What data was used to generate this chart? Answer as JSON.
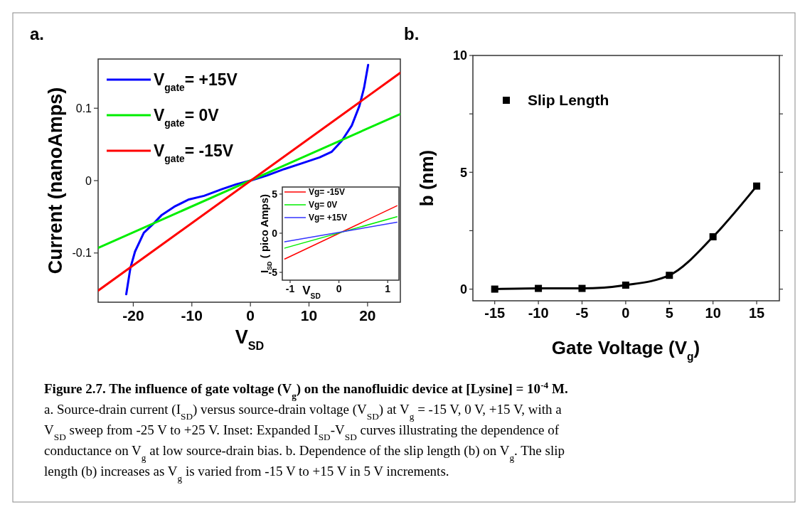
{
  "chart_data": [
    {
      "type": "line",
      "title": "a.",
      "xlabel": "V$_{SD}$",
      "ylabel": "Current (nanoAmps)",
      "xlim": [
        -26,
        25.6
      ],
      "xticks": [
        -20,
        -10,
        0,
        10,
        20
      ],
      "ylim": [
        -0.168,
        0.168
      ],
      "yticks": [
        -0.1,
        0,
        0.1
      ],
      "legend": "top left",
      "series": [
        {
          "name": "V$_{gate}$= +15V",
          "color": "#0000ff",
          "x": [
            -21.2,
            -20.5,
            -19.7,
            -18.2,
            -16.5,
            -15.2,
            -13,
            -10.5,
            -7.9,
            -4.9,
            -2.4,
            0,
            2.8,
            5.8,
            8.8,
            11.8,
            13.9,
            15.6,
            17.3,
            18.6,
            19.4,
            20.1
          ],
          "values": [
            -0.157,
            -0.121,
            -0.098,
            -0.072,
            -0.059,
            -0.048,
            -0.036,
            -0.026,
            -0.021,
            -0.012,
            -0.005,
            0,
            0.007,
            0.016,
            0.024,
            0.032,
            0.04,
            0.055,
            0.076,
            0.103,
            0.128,
            0.16
          ]
        },
        {
          "name": "V$_{gate}$= 0V",
          "color": "#00ee00",
          "x": [
            -26,
            25.6
          ],
          "values": [
            -0.093,
            0.092
          ]
        },
        {
          "name": "V$_{gate}$= -15V",
          "color": "#ff0000",
          "x": [
            -26,
            25.6
          ],
          "values": [
            -0.152,
            0.149
          ]
        }
      ],
      "annotations": [
        "Figure 2.7. The influence of gate voltage (V$_{g}$) on the nanofluidic device at  [Lysine] = 10$^{-4}$ M.",
        "a. Source-drain current (I$_{SD}$) versus source-drain voltage (V$_{SD}$) at V$_{g}$ = -15 V, 0 V, +15 V, with a",
        "V$_{SD}$ sweep from -25 V to +25 V. Inset: Expanded I$_{SD}$-V$_{SD}$  curves illustrating the dependence of",
        "conductance on V$_{g}$ at low source-drain bias. b. Dependence of the slip length (b) on V$_{g}$. The slip",
        "length (b) increases as V$_{g}$ is varied from -15 V to +15 V in 5 V increments."
      ]
    },
    {
      "type": "line",
      "xlabel": "V$_{SD}$",
      "ylabel": "I$_{SD}$ ( pico Amps)",
      "xlim": [
        -1.16,
        1.23
      ],
      "xticks": [
        -1,
        0,
        1
      ],
      "ylim": [
        -6,
        5.9
      ],
      "yticks": [
        -5,
        0,
        5
      ],
      "legend": "top left",
      "series": [
        {
          "name": "Vg= -15V",
          "color": "#ff0000",
          "x": [
            -1.11,
            1.19
          ],
          "values": [
            -3.3,
            3.5
          ]
        },
        {
          "name": "Vg= 0V",
          "color": "#00ee00",
          "x": [
            -1.11,
            1.19
          ],
          "values": [
            -1.9,
            2.1
          ]
        },
        {
          "name": "Vg= +15V",
          "color": "#3333ff",
          "x": [
            -1.11,
            1.19
          ],
          "values": [
            -1.1,
            1.4
          ]
        }
      ]
    },
    {
      "type": "line",
      "title": "b.",
      "xlabel": "Gate Voltage (V$_{g}$)",
      "ylabel": "b (nm)",
      "xlim": [
        -17.5,
        17.6
      ],
      "xticks": [
        -15,
        -10,
        -5,
        0,
        5,
        10,
        15
      ],
      "ylim": [
        -0.5,
        10
      ],
      "yticks": [
        0,
        {
          "value": 2.5,
          "label": null
        },
        5,
        {
          "value": 7.5,
          "label": null
        },
        10
      ],
      "legend": "top left",
      "marker": "square",
      "series": [
        {
          "name": "Slip Length",
          "color": "#000000",
          "x": [
            -15,
            -10,
            -5,
            0,
            5,
            10,
            15
          ],
          "values": [
            0,
            0.03,
            0.03,
            0.17,
            0.59,
            2.24,
            4.41
          ]
        }
      ]
    }
  ]
}
